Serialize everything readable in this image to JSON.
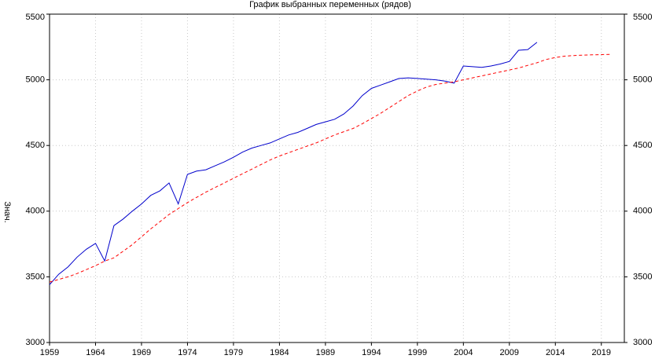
{
  "chart_data": {
    "type": "line",
    "title": "График выбранных переменных (рядов)",
    "xlabel": "",
    "ylabel": "Знач.",
    "xlim": [
      1959,
      2021.5
    ],
    "ylim": [
      3000,
      5500
    ],
    "x_ticks": [
      1959,
      1964,
      1969,
      1974,
      1979,
      1984,
      1989,
      1994,
      1999,
      2004,
      2009,
      2014,
      2019
    ],
    "y_ticks": [
      3000,
      3500,
      4000,
      4500,
      5000,
      5500
    ],
    "grid": true,
    "colors": {
      "observed": "#0000cc",
      "forecast": "#ff0000",
      "grid": "#c8c8c8",
      "axes": "#000000"
    },
    "series": [
      {
        "style": "solid",
        "x": [
          1959,
          1960,
          1961,
          1962,
          1963,
          1964,
          1965,
          1966,
          1967,
          1968,
          1969,
          1970,
          1971,
          1972,
          1973,
          1974,
          1975,
          1976,
          1977,
          1978,
          1979,
          1980,
          1981,
          1982,
          1983,
          1984,
          1985,
          1986,
          1987,
          1988,
          1989,
          1990,
          1991,
          1992,
          1993,
          1994,
          1995,
          1996,
          1997,
          1998,
          1999,
          2000,
          2001,
          2002,
          2003,
          2004,
          2005,
          2006,
          2007,
          2008,
          2009,
          2010,
          2011,
          2012
        ],
        "values": [
          3440,
          3520,
          3575,
          3650,
          3710,
          3755,
          3620,
          3890,
          3940,
          4000,
          4055,
          4120,
          4155,
          4215,
          4055,
          4280,
          4305,
          4315,
          4345,
          4375,
          4410,
          4450,
          4480,
          4500,
          4520,
          4550,
          4580,
          4600,
          4630,
          4660,
          4680,
          4700,
          4740,
          4800,
          4880,
          4935,
          4960,
          4985,
          5010,
          5015,
          5010,
          5005,
          5000,
          4990,
          4975,
          5105,
          5100,
          5095,
          5105,
          5120,
          5140,
          5225,
          5230,
          5285
        ]
      },
      {
        "style": "dashed",
        "x": [
          1959,
          1960,
          1961,
          1962,
          1963,
          1964,
          1965,
          1966,
          1967,
          1968,
          1969,
          1970,
          1971,
          1972,
          1973,
          1974,
          1975,
          1976,
          1977,
          1978,
          1979,
          1980,
          1981,
          1982,
          1983,
          1984,
          1985,
          1986,
          1987,
          1988,
          1989,
          1990,
          1991,
          1992,
          1993,
          1994,
          1995,
          1996,
          1997,
          1998,
          1999,
          2000,
          2001,
          2002,
          2003,
          2004,
          2005,
          2006,
          2007,
          2008,
          2009,
          2010,
          2011,
          2012,
          2013,
          2014,
          2015,
          2016,
          2017,
          2018,
          2019,
          2020
        ],
        "values": [
          3460,
          3480,
          3500,
          3525,
          3555,
          3585,
          3620,
          3645,
          3695,
          3745,
          3805,
          3865,
          3920,
          3975,
          4020,
          4065,
          4105,
          4145,
          4180,
          4215,
          4250,
          4285,
          4320,
          4355,
          4390,
          4420,
          4445,
          4470,
          4495,
          4520,
          4550,
          4580,
          4605,
          4630,
          4665,
          4705,
          4745,
          4790,
          4835,
          4880,
          4915,
          4945,
          4965,
          4975,
          4985,
          5000,
          5015,
          5030,
          5045,
          5060,
          5075,
          5090,
          5110,
          5130,
          5155,
          5170,
          5180,
          5185,
          5188,
          5190,
          5192,
          5194
        ]
      }
    ]
  }
}
